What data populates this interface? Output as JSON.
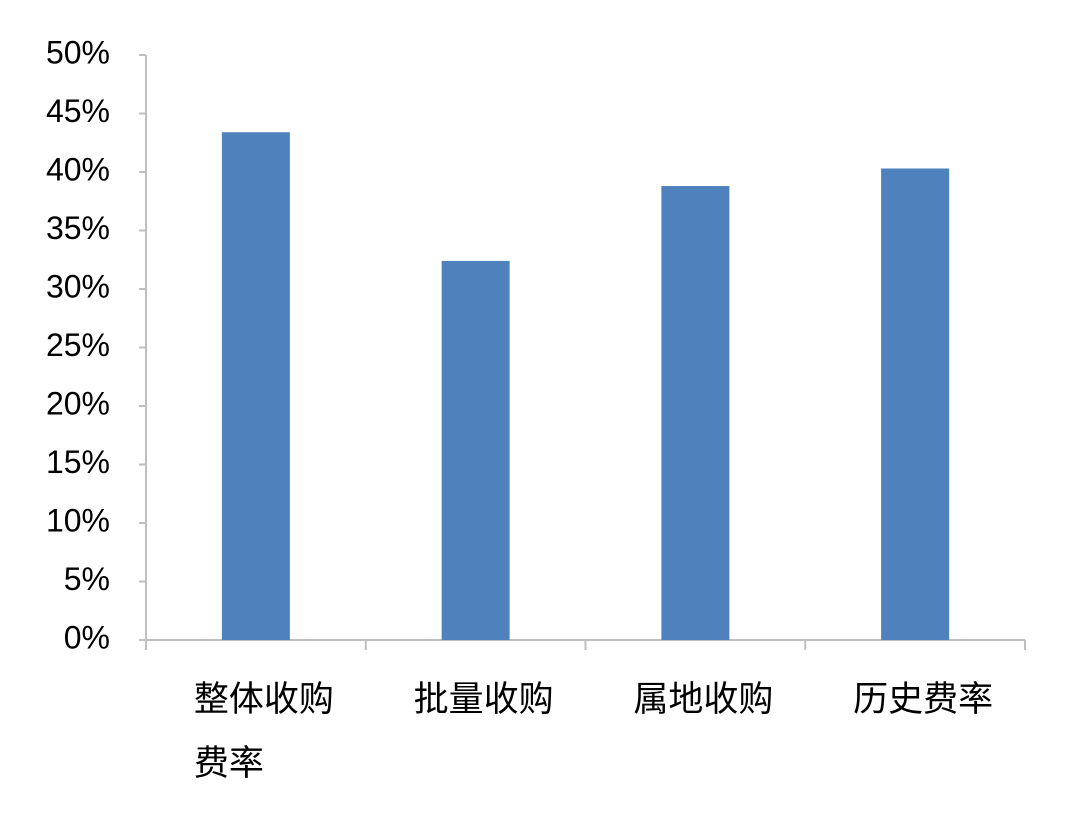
{
  "chart_data": {
    "type": "bar",
    "categories": [
      "整体收购费率",
      "批量收购",
      "属地收购",
      "历史费率"
    ],
    "values": [
      43.4,
      32.4,
      38.8,
      40.3
    ],
    "color": "#4f81bd",
    "ylim": [
      0,
      50
    ],
    "yticks": [
      {
        "value": 0,
        "label": "0%"
      },
      {
        "value": 5,
        "label": "5%"
      },
      {
        "value": 10,
        "label": "10%"
      },
      {
        "value": 15,
        "label": "15%"
      },
      {
        "value": 20,
        "label": "20%"
      },
      {
        "value": 25,
        "label": "25%"
      },
      {
        "value": 30,
        "label": "30%"
      },
      {
        "value": 35,
        "label": "35%"
      },
      {
        "value": 40,
        "label": "40%"
      },
      {
        "value": 45,
        "label": "45%"
      },
      {
        "value": 50,
        "label": "50%"
      }
    ],
    "grid": false
  }
}
